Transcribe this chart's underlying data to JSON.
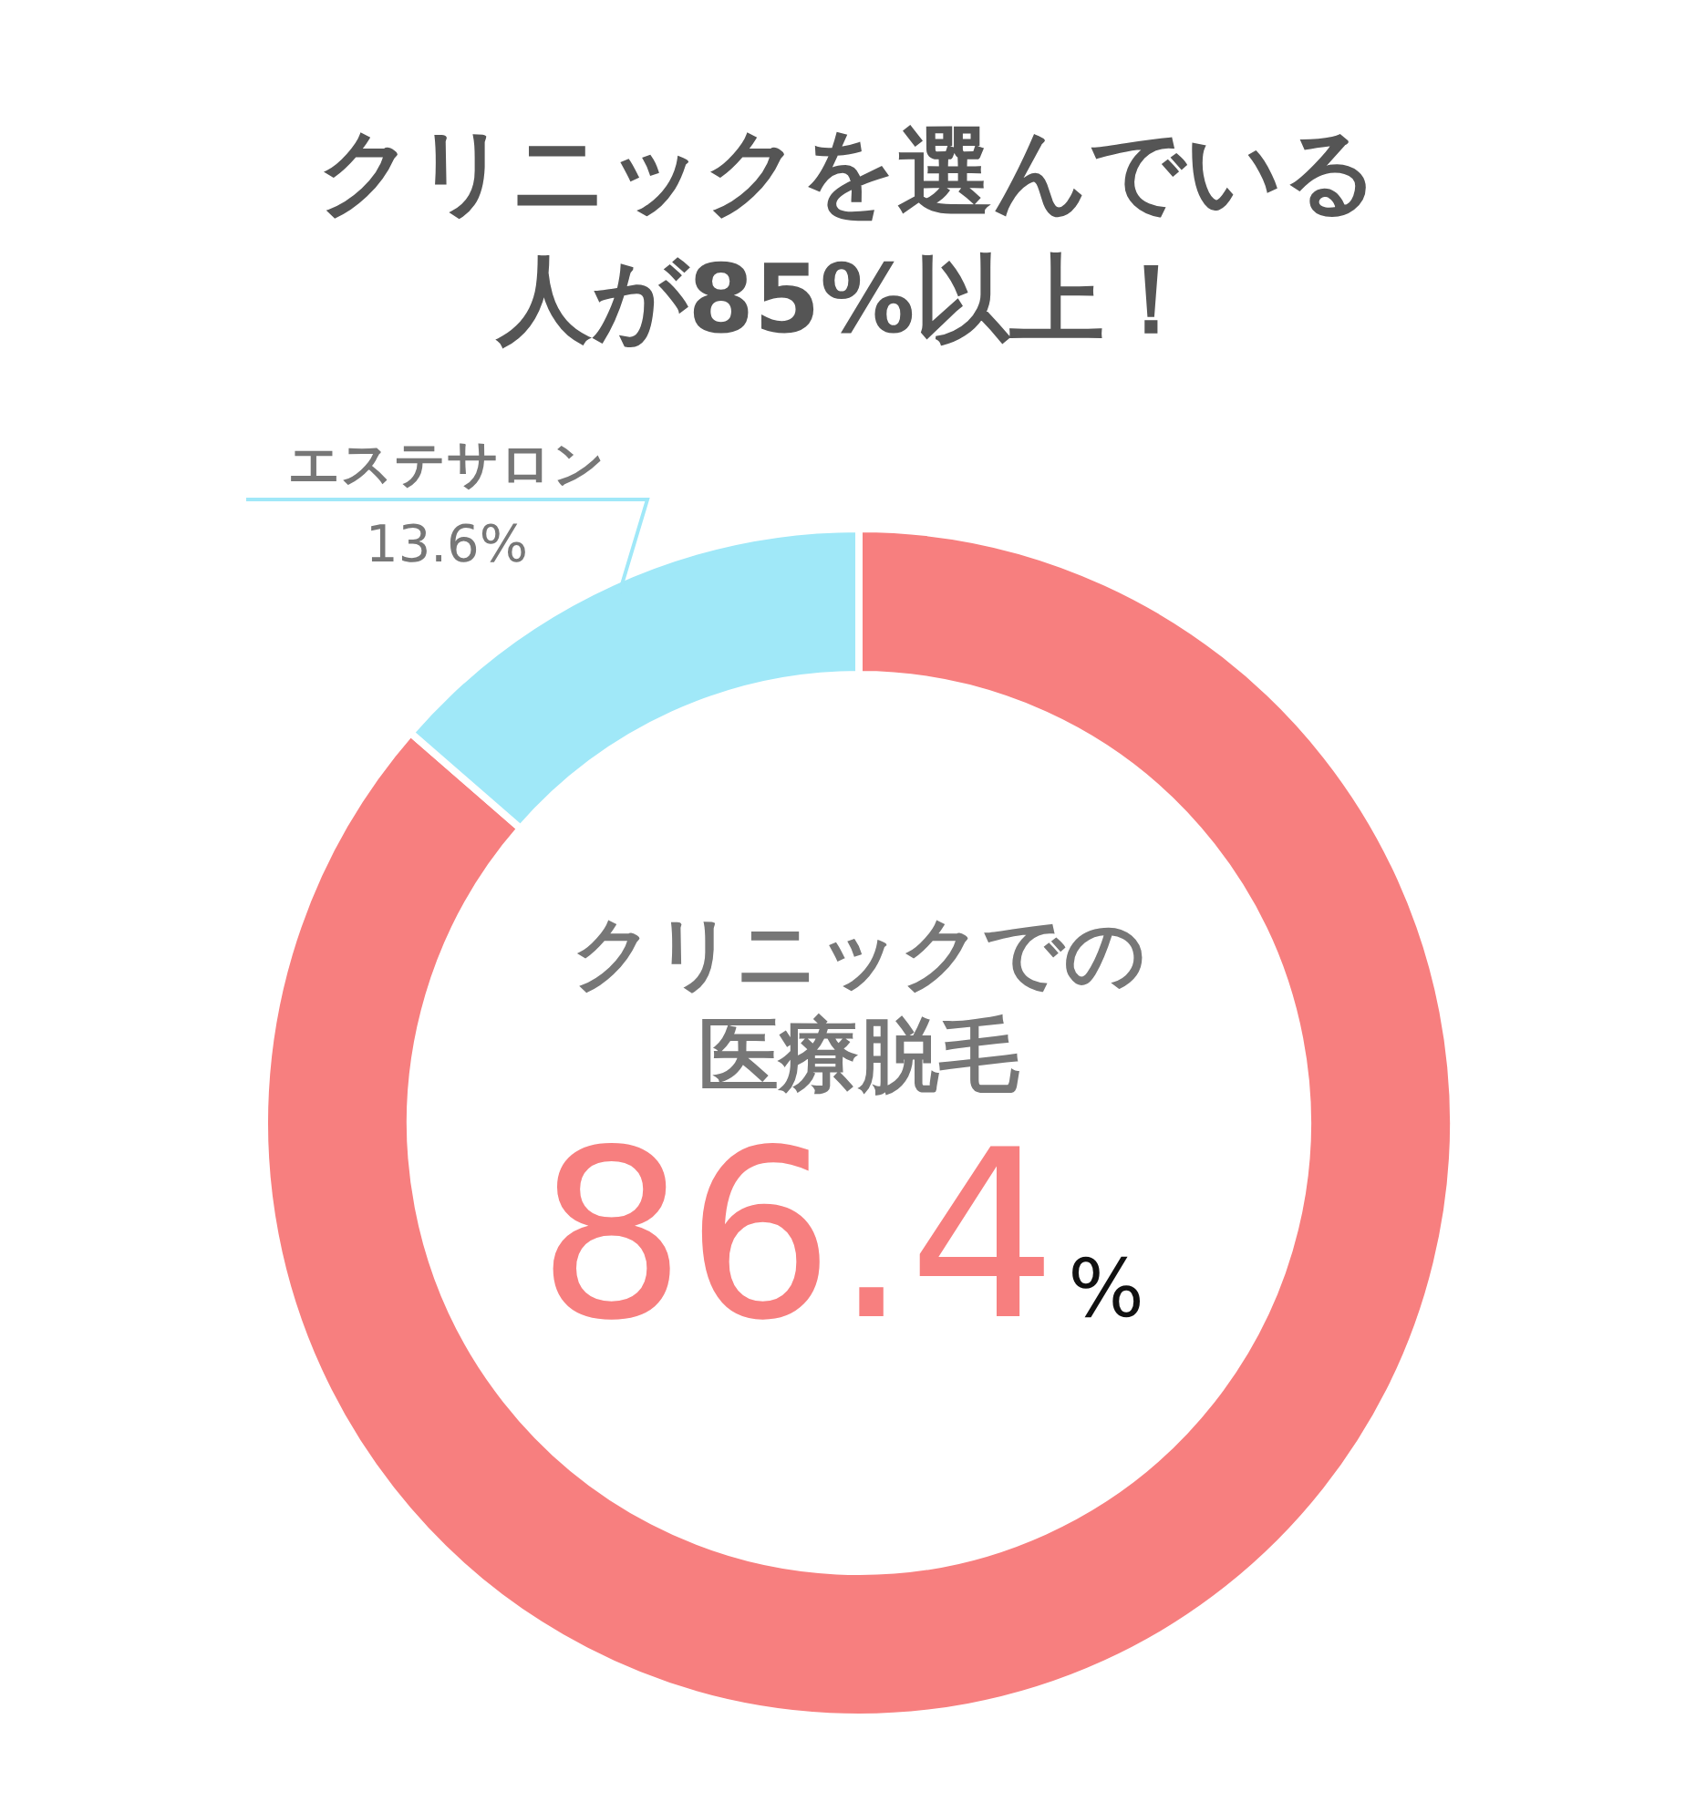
{
  "chart_data": {
    "type": "donut",
    "title": "クリニックを選んでいる人が85%以上！",
    "categories": [
      "クリニックでの医療脱毛",
      "エステサロン"
    ],
    "values": [
      86.4,
      13.6
    ],
    "colors": [
      "#f77f7f",
      "#a0e8f8"
    ],
    "value_labels": [
      "86.4%",
      "13.6%"
    ]
  }
}
